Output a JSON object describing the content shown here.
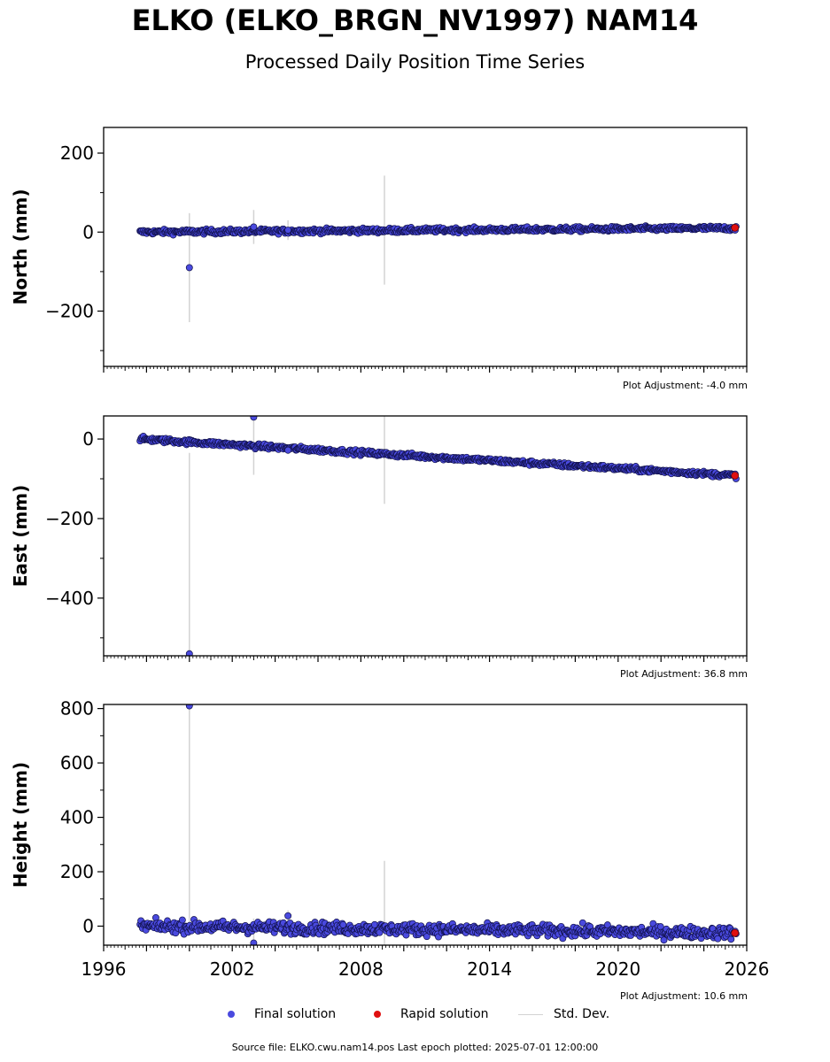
{
  "title": "ELKO (ELKO_BRGN_NV1997) NAM14",
  "subtitle": "Processed Daily Position Time Series",
  "legend": {
    "final_label": "Final solution",
    "rapid_label": "Rapid solution",
    "std_label": "Std. Dev."
  },
  "colors": {
    "final": "#4a4adf",
    "final_edge": "#10104a",
    "rapid": "#e01010",
    "std": "#d3d3d3"
  },
  "source_text": "Source file: ELKO.cwu.nam14.pos  Last epoch plotted: 2025-07-01 12:00:00",
  "chart_data": [
    {
      "type": "scatter",
      "ylabel": "North (mm)",
      "xlim": [
        1996,
        2026
      ],
      "ylim": [
        -340,
        265
      ],
      "yticks": [
        200,
        0,
        -200
      ],
      "ytick_labels": [
        "200",
        "0",
        "−200"
      ],
      "adjustment": "Plot Adjustment: -4.0 mm",
      "trend": {
        "x_start": 1997.7,
        "x_end": 2025.5,
        "y_start": 0,
        "y_end": 10,
        "noise": 3
      },
      "outliers": [
        {
          "x": 2000.0,
          "y": -90,
          "err": 138
        },
        {
          "x": 2003.0,
          "y": 13,
          "err": 43
        },
        {
          "x": 2004.6,
          "y": 5,
          "err": 25
        }
      ],
      "std_bars": [
        {
          "x": 2009.1,
          "y": 5,
          "err": 138
        }
      ],
      "rapid_points": [
        {
          "x": 2025.45,
          "y": 11
        }
      ]
    },
    {
      "type": "scatter",
      "ylabel": "East (mm)",
      "xlim": [
        1996,
        2026
      ],
      "ylim": [
        -545,
        58
      ],
      "yticks": [
        0,
        -200,
        -400
      ],
      "ytick_labels": [
        "0",
        "−200",
        "−400"
      ],
      "adjustment": "Plot Adjustment: 36.8 mm",
      "trend": {
        "x_start": 1997.7,
        "x_end": 2025.5,
        "y_start": 0,
        "y_end": -92,
        "noise": 3
      },
      "outliers": [
        {
          "x": 2000.0,
          "y": -540,
          "err": 505
        },
        {
          "x": 2003.0,
          "y": 55,
          "err": 145
        },
        {
          "x": 2004.6,
          "y": -28,
          "err": 10
        }
      ],
      "std_bars": [
        {
          "x": 2009.1,
          "y": -45,
          "err": 118
        }
      ],
      "rapid_points": [
        {
          "x": 2025.45,
          "y": -92
        }
      ]
    },
    {
      "type": "scatter",
      "ylabel": "Height (mm)",
      "xlim": [
        1996,
        2026
      ],
      "ylim": [
        -70,
        815
      ],
      "yticks": [
        800,
        600,
        400,
        200,
        0
      ],
      "ytick_labels": [
        "800",
        "600",
        "400",
        "200",
        "0"
      ],
      "xticks": [
        1996,
        2002,
        2008,
        2014,
        2020,
        2026
      ],
      "adjustment": "Plot Adjustment: 10.6 mm",
      "trend": {
        "x_start": 1997.7,
        "x_end": 2025.5,
        "y_start": 0,
        "y_end": -25,
        "noise": 11
      },
      "outliers": [
        {
          "x": 2000.0,
          "y": 810,
          "err": 800
        },
        {
          "x": 2003.0,
          "y": -62,
          "err": 90
        },
        {
          "x": 2004.6,
          "y": 38,
          "err": 20
        }
      ],
      "std_bars": [
        {
          "x": 2009.1,
          "y": 0,
          "err": 240
        }
      ],
      "rapid_points": [
        {
          "x": 2025.45,
          "y": -25
        }
      ]
    }
  ]
}
